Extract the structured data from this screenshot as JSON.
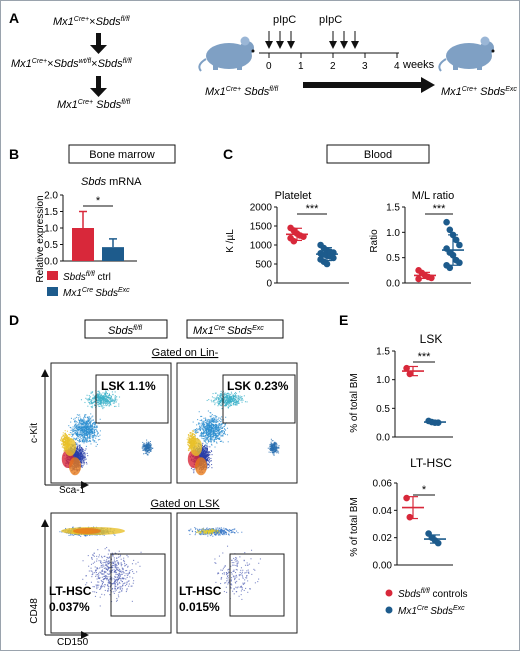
{
  "figure": {
    "panel_labels": [
      "A",
      "B",
      "C",
      "D",
      "E"
    ],
    "colors": {
      "ctrl": "#d8283a",
      "exc": "#1d5b8c",
      "mouse": "#7fa0c4"
    }
  },
  "panelA": {
    "cross1": {
      "left": "Mx1",
      "left_sup": "Cre+",
      "x": "×",
      "right": "Sbds",
      "right_sup": "fl/fl"
    },
    "cross2": {
      "a": "Mx1",
      "a_sup": "Cre+",
      "x1": "×",
      "b": "Sbds",
      "b_sup": "wt/fl",
      "x2": "×",
      "c": "Sbds",
      "c_sup": "fl/fl"
    },
    "cross3": {
      "a": "Mx1",
      "a_sup": "Cre+",
      "b": "Sbds",
      "b_sup": "fl/fl"
    },
    "timeline": {
      "pipc1": "pIpC",
      "pipc2": "pIpC",
      "ticks": [
        "0",
        "1",
        "2",
        "3",
        "4"
      ],
      "unit": "weeks"
    },
    "mouse_left": {
      "a": "Mx1",
      "a_sup": "Cre+",
      "b": "Sbds",
      "b_sup": "fl/fl"
    },
    "mouse_right": {
      "a": "Mx1",
      "a_sup": "Cre+",
      "b": "Sbds",
      "b_sup": "Exc"
    }
  },
  "panelB": {
    "box_title": "Bone marrow",
    "gene": "Sbds",
    "gene_suffix": " mRNA",
    "ylabel": "Relative expression",
    "sig": "*",
    "legend": {
      "ctrl": {
        "a": "Sbds",
        "a_sup": "fl/fl",
        "b": " ctrl"
      },
      "exc": {
        "a": "Mx1",
        "a_sup": "Cre",
        "b": "Sbds",
        "b_sup": "Exc"
      }
    }
  },
  "panelC": {
    "box_title": "Blood",
    "sig1": "***",
    "sig2": "***"
  },
  "panelD": {
    "col1": {
      "a": "Sbds",
      "a_sup": "fl/fl"
    },
    "col2": {
      "a": "Mx1",
      "a_sup": "Cre",
      "b": "Sbds",
      "b_sup": "Exc"
    },
    "gate_top": "Gated on Lin-",
    "gate_bottom": "Gated on LSK",
    "lsk1": "LSK 1.1%",
    "lsk2": "LSK 0.23%",
    "lt_label": "LT-HSC",
    "lt1": "0.037%",
    "lt2": "0.015%",
    "xaxis_top": "Sca-1",
    "yaxis_top": "c-Kit",
    "xaxis_bottom": "CD150",
    "yaxis_bottom": "CD48"
  },
  "panelE": {
    "legend": {
      "ctrl": {
        "a": "Sbds",
        "a_sup": "fl/fl",
        "b": " controls"
      },
      "exc": {
        "a": "Mx1",
        "a_sup": "Cre",
        "b": "Sbds",
        "b_sup": "Exc"
      }
    }
  },
  "chart_data": [
    {
      "type": "bar",
      "panel": "B",
      "title": "Sbds mRNA",
      "ylabel": "Relative expression",
      "ylim": [
        0,
        2.0
      ],
      "yticks": [
        0,
        0.5,
        1.0,
        1.5,
        2.0
      ],
      "categories": [
        "Sbds fl/fl ctrl",
        "Mx1 Cre Sbds Exc"
      ],
      "values": [
        1.0,
        0.42
      ],
      "errors": [
        0.5,
        0.25
      ],
      "colors": [
        "#d8283a",
        "#1d5b8c"
      ],
      "significance": "*"
    },
    {
      "type": "scatter",
      "panel": "C",
      "title": "Platelet",
      "ylabel": "K /µL",
      "ylim": [
        0,
        2000
      ],
      "yticks": [
        0,
        500,
        1000,
        1500,
        2000
      ],
      "series": [
        {
          "color": "#d8283a",
          "mean": 1280,
          "err": 160,
          "values": [
            1450,
            1380,
            1300,
            1250,
            1220,
            1180,
            1100
          ]
        },
        {
          "color": "#1d5b8c",
          "mean": 760,
          "err": 170,
          "values": [
            1000,
            920,
            860,
            820,
            800,
            780,
            750,
            720,
            700,
            660,
            620,
            560,
            500
          ]
        }
      ],
      "significance": "***"
    },
    {
      "type": "scatter",
      "panel": "C",
      "title": "M/L ratio",
      "ylabel": "Ratio",
      "ylim": [
        0,
        1.5
      ],
      "yticks": [
        0.0,
        0.5,
        1.0,
        1.5
      ],
      "series": [
        {
          "color": "#d8283a",
          "mean": 0.15,
          "err": 0.06,
          "values": [
            0.25,
            0.2,
            0.15,
            0.12,
            0.1,
            0.08
          ]
        },
        {
          "color": "#1d5b8c",
          "mean": 0.65,
          "err": 0.3,
          "values": [
            1.2,
            1.05,
            0.95,
            0.85,
            0.75,
            0.68,
            0.6,
            0.55,
            0.45,
            0.4,
            0.35,
            0.3
          ]
        }
      ],
      "significance": "***"
    },
    {
      "type": "scatter",
      "panel": "E",
      "title": "LSK",
      "ylabel": "% of total BM",
      "ylim": [
        0,
        1.5
      ],
      "yticks": [
        0.0,
        0.5,
        1.0,
        1.5
      ],
      "series": [
        {
          "color": "#d8283a",
          "mean": 1.15,
          "err": 0.08,
          "values": [
            1.2,
            1.1
          ]
        },
        {
          "color": "#1d5b8c",
          "mean": 0.26,
          "err": 0.02,
          "values": [
            0.28,
            0.26,
            0.25,
            0.25
          ]
        }
      ],
      "significance": "***"
    },
    {
      "type": "scatter",
      "panel": "E",
      "title": "LT-HSC",
      "ylabel": "% of total BM",
      "ylim": [
        0,
        0.06
      ],
      "yticks": [
        0.0,
        0.02,
        0.04,
        0.06
      ],
      "series": [
        {
          "color": "#d8283a",
          "mean": 0.042,
          "err": 0.008,
          "values": [
            0.049,
            0.035
          ]
        },
        {
          "color": "#1d5b8c",
          "mean": 0.019,
          "err": 0.003,
          "values": [
            0.023,
            0.02,
            0.018,
            0.016
          ]
        }
      ],
      "significance": "*"
    }
  ]
}
